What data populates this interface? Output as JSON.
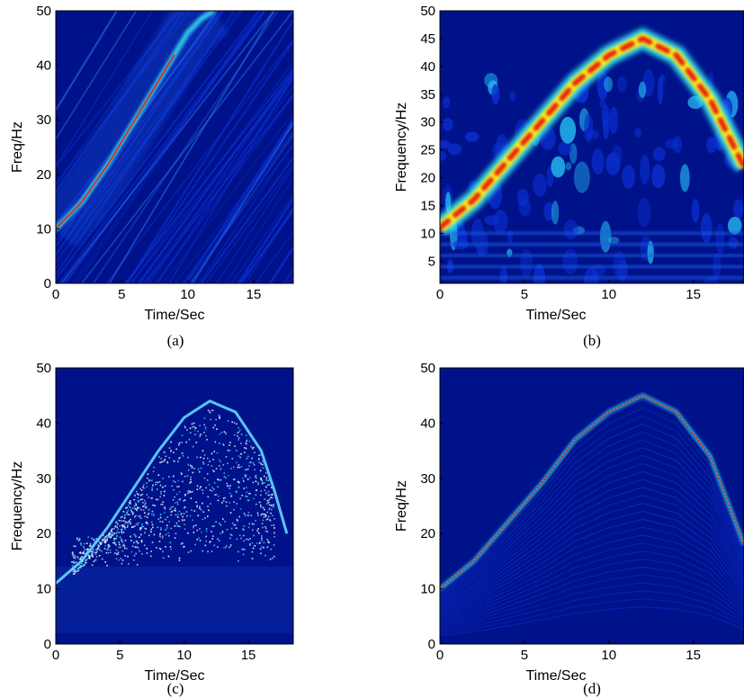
{
  "colors": {
    "background": "#00128a",
    "background_light": "#0a2fd0",
    "cyan": "#38e8f0",
    "yellow": "#f4f020",
    "red": "#e8200c"
  },
  "chart_data": [
    {
      "type": "heatmap",
      "caption": "(a)",
      "xlabel": "Time/Sec",
      "ylabel": "Freq/Hz",
      "xlim": [
        0,
        18
      ],
      "ylim": [
        0,
        50
      ],
      "xticks": [
        0,
        5,
        10,
        15
      ],
      "yticks": [
        0,
        10,
        20,
        30,
        40,
        50
      ],
      "ridge": {
        "x": [
          0,
          2,
          4,
          6,
          8,
          9,
          10,
          11,
          12
        ],
        "y": [
          10,
          15,
          22,
          30,
          38,
          42,
          46,
          48.5,
          50
        ]
      },
      "hot_segment_until": 9.5
    },
    {
      "type": "heatmap",
      "caption": "(b)",
      "xlabel": "Time/Sec",
      "ylabel": "Frequency/Hz",
      "xlim": [
        0,
        18
      ],
      "ylim": [
        1,
        50
      ],
      "xticks": [
        0,
        5,
        10,
        15
      ],
      "yticks": [
        5,
        10,
        15,
        20,
        25,
        30,
        35,
        40,
        45,
        50
      ],
      "ridge": {
        "x": [
          0,
          2,
          4,
          6,
          8,
          10,
          12,
          14,
          16,
          17,
          18
        ],
        "y": [
          11,
          16,
          23,
          30,
          37,
          42,
          45,
          42,
          34,
          28,
          22
        ]
      }
    },
    {
      "type": "heatmap",
      "caption": "(c)",
      "xlabel": "Time/Sec",
      "ylabel": "Frequency/Hz",
      "xlim": [
        0,
        18.5
      ],
      "ylim": [
        0,
        50
      ],
      "xticks": [
        0,
        5,
        10,
        15
      ],
      "yticks": [
        0,
        10,
        20,
        30,
        40,
        50
      ],
      "ridge": {
        "x": [
          0,
          2,
          4,
          6,
          8,
          10,
          12,
          14,
          16,
          17,
          18
        ],
        "y": [
          11,
          15,
          21,
          28,
          35,
          41,
          44,
          42,
          35,
          28,
          20
        ]
      }
    },
    {
      "type": "heatmap",
      "caption": "(d)",
      "xlabel": "Time/Sec",
      "ylabel": "Freq/Hz",
      "xlim": [
        0,
        18
      ],
      "ylim": [
        0,
        50
      ],
      "xticks": [
        0,
        5,
        10,
        15
      ],
      "yticks": [
        0,
        10,
        20,
        30,
        40,
        50
      ],
      "ridge": {
        "x": [
          0,
          2,
          4,
          6,
          8,
          10,
          12,
          14,
          16,
          17,
          18
        ],
        "y": [
          10,
          15,
          22,
          29,
          37,
          42,
          45,
          42,
          34,
          26,
          18
        ]
      }
    }
  ]
}
